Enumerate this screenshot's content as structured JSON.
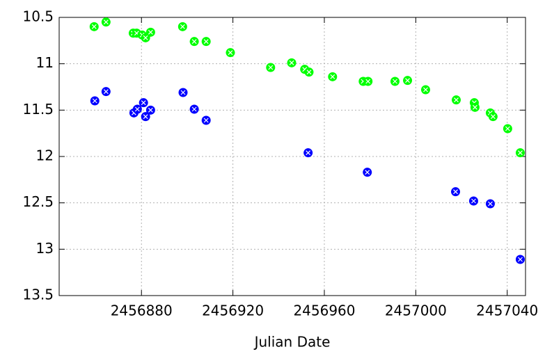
{
  "chart_data": {
    "type": "scatter",
    "x_label": "Julian Date",
    "xlim": [
      2456844,
      2457048
    ],
    "xticks": [
      2456880,
      2456920,
      2456960,
      2457000,
      2457040
    ],
    "ylim": [
      10.5,
      13.5
    ],
    "yticks": [
      10.5,
      11,
      11.5,
      12,
      12.5,
      13,
      13.5
    ],
    "invert_y": true,
    "grid": true,
    "series": [
      {
        "color": "#00ff00",
        "x": [
          2456859.3,
          2456864.5,
          2456876.4,
          2456877.9,
          2456880.3,
          2456881.8,
          2456884,
          2456898,
          2456903.1,
          2456908.3,
          2456918.9,
          2456936.5,
          2456945.7,
          2456951.4,
          2456953.3,
          2456963.6,
          2456977,
          2456979.1,
          2456990.9,
          2456996.4,
          2457004.3,
          2457017.7,
          2457025.6,
          2457025.9,
          2457032.6,
          2457033.8,
          2457040.2,
          2457045.7
        ],
        "values": [
          10.6,
          10.55,
          10.67,
          10.67,
          10.69,
          10.72,
          10.66,
          10.6,
          10.76,
          10.76,
          10.88,
          11.04,
          10.99,
          11.06,
          11.09,
          11.14,
          11.19,
          11.19,
          11.19,
          11.18,
          11.28,
          11.39,
          11.42,
          11.47,
          11.53,
          11.57,
          11.7,
          11.96
        ]
      },
      {
        "color": "#0000ff",
        "x": [
          2456859.6,
          2456864.5,
          2456876.7,
          2456878.2,
          2456880.9,
          2456881.8,
          2456884,
          2456898.2,
          2456903.1,
          2456908.3,
          2456952.9,
          2456978.8,
          2457017.4,
          2457025.3,
          2457032.6,
          2457045.7
        ],
        "values": [
          11.4,
          11.3,
          11.53,
          11.49,
          11.42,
          11.57,
          11.5,
          11.31,
          11.49,
          11.61,
          11.96,
          12.17,
          12.38,
          12.48,
          12.51,
          13.11
        ]
      }
    ]
  }
}
